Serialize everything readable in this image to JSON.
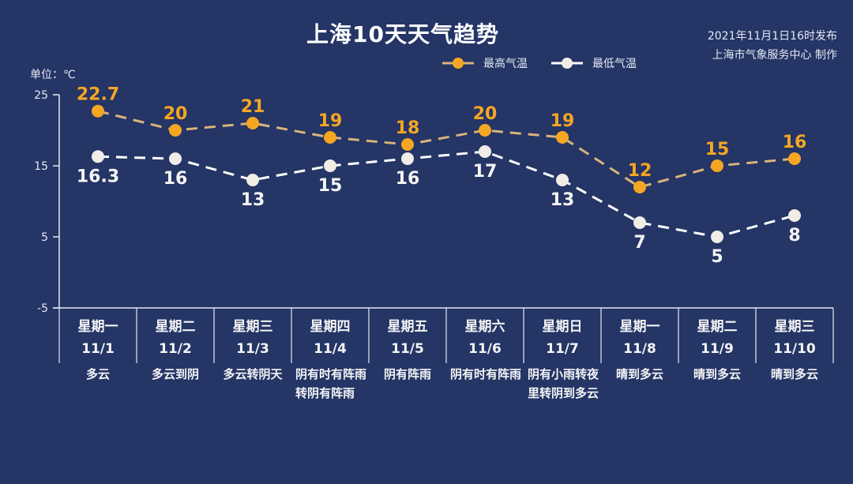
{
  "header": {
    "title": "上海10天天气趋势",
    "publish_time": "2021年11月1日16时发布",
    "publisher": "上海市气象服务中心 制作"
  },
  "legend": {
    "high_label": "最高气温",
    "low_label": "最低气温"
  },
  "colors": {
    "background": "#243566",
    "high": "#f5a623",
    "high_line": "#d9b47a",
    "low": "#f0ece6",
    "axis": "#e6e9f2"
  },
  "unit_label": "单位：℃",
  "days": [
    {
      "dow": "星期一",
      "date": "11/1",
      "cond": "多云"
    },
    {
      "dow": "星期二",
      "date": "11/2",
      "cond": "多云到阴"
    },
    {
      "dow": "星期三",
      "date": "11/3",
      "cond": "多云转阴天"
    },
    {
      "dow": "星期四",
      "date": "11/4",
      "cond": "阴有时有阵雨转阴有阵雨"
    },
    {
      "dow": "星期五",
      "date": "11/5",
      "cond": "阴有阵雨"
    },
    {
      "dow": "星期六",
      "date": "11/6",
      "cond": "阴有时有阵雨"
    },
    {
      "dow": "星期日",
      "date": "11/7",
      "cond": "阴有小雨转夜里转阴到多云"
    },
    {
      "dow": "星期一",
      "date": "11/8",
      "cond": "晴到多云"
    },
    {
      "dow": "星期二",
      "date": "11/9",
      "cond": "晴到多云"
    },
    {
      "dow": "星期三",
      "date": "11/10",
      "cond": "晴到多云"
    }
  ],
  "chart_data": {
    "type": "line",
    "title": "上海10天天气趋势",
    "xlabel": "",
    "ylabel": "单位：℃",
    "categories": [
      "11/1",
      "11/2",
      "11/3",
      "11/4",
      "11/5",
      "11/6",
      "11/7",
      "11/8",
      "11/9",
      "11/10"
    ],
    "series": [
      {
        "name": "最高气温",
        "values": [
          22.7,
          20,
          21,
          19,
          18,
          20,
          19,
          12,
          15,
          16
        ],
        "color": "#f5a623",
        "dashed": true
      },
      {
        "name": "最低气温",
        "values": [
          16.3,
          16,
          13,
          15,
          16,
          17,
          13,
          7,
          5,
          8
        ],
        "color": "#f0ece6",
        "dashed": true
      }
    ],
    "yticks": [
      25,
      15,
      5,
      -5
    ],
    "ylim": [
      -5,
      25
    ],
    "grid": false,
    "legend_position": "top"
  }
}
